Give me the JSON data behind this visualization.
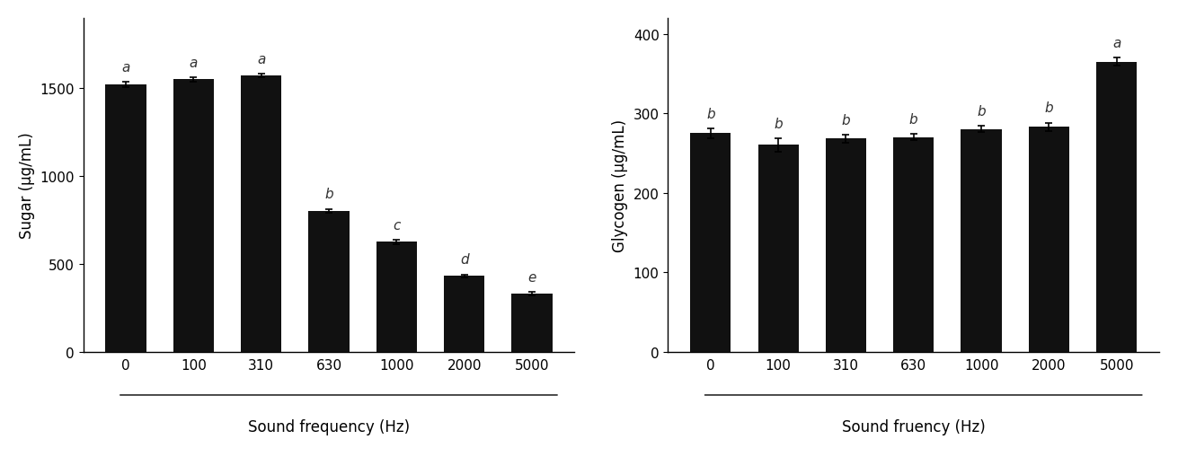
{
  "sugar": {
    "categories": [
      "0",
      "100",
      "310",
      "630",
      "1000",
      "2000",
      "5000"
    ],
    "values": [
      1520,
      1550,
      1570,
      800,
      625,
      430,
      330
    ],
    "errors": [
      15,
      12,
      10,
      12,
      12,
      10,
      10
    ],
    "letters": [
      "a",
      "a",
      "a",
      "b",
      "c",
      "d",
      "e"
    ],
    "ylabel": "Sugar (μg/mL)",
    "xlabel": "Sound frequency (Hz)",
    "ylim": [
      0,
      1900
    ],
    "yticks": [
      0,
      500,
      1000,
      1500
    ],
    "bar_color": "#111111",
    "bar_width": 0.6
  },
  "glycogen": {
    "categories": [
      "0",
      "100",
      "310",
      "630",
      "1000",
      "2000",
      "5000"
    ],
    "values": [
      275,
      260,
      268,
      270,
      280,
      283,
      365
    ],
    "errors": [
      6,
      8,
      5,
      4,
      4,
      5,
      5
    ],
    "letters": [
      "b",
      "b",
      "b",
      "b",
      "b",
      "b",
      "a"
    ],
    "ylabel": "Glycogen (μg/mL)",
    "xlabel": "Sound fruency (Hz)",
    "ylim": [
      0,
      420
    ],
    "yticks": [
      0,
      100,
      200,
      300,
      400
    ],
    "bar_color": "#111111",
    "bar_width": 0.6
  },
  "letter_fontsize": 11,
  "axis_label_fontsize": 12,
  "tick_fontsize": 11,
  "figure_bgcolor": "#ffffff"
}
